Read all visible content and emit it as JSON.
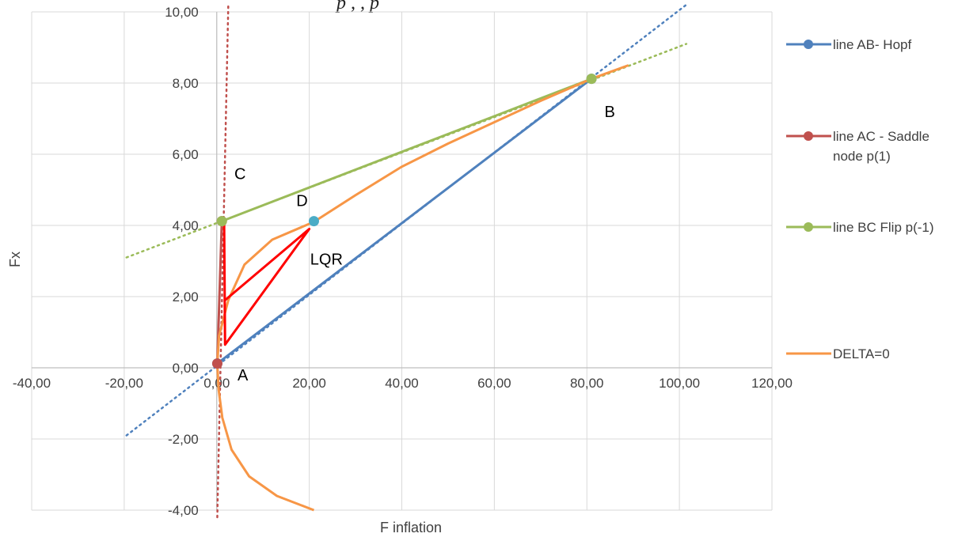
{
  "chart_data": {
    "type": "scatter",
    "title_fragment": "p            ,           , p",
    "xlabel": "F inflation",
    "ylabel": "Fx",
    "xlim": [
      -40,
      120
    ],
    "ylim": [
      -4,
      10
    ],
    "x_ticks": [
      -40,
      -20,
      0,
      20,
      40,
      60,
      80,
      100,
      120
    ],
    "x_tick_labels": [
      "-40,00",
      "-20,00",
      "0,00",
      "20,00",
      "40,00",
      "60,00",
      "80,00",
      "100,00",
      "120,00"
    ],
    "y_ticks": [
      -4,
      -2,
      0,
      2,
      4,
      6,
      8,
      10
    ],
    "y_tick_labels": [
      "-4,00",
      "-2,00",
      "0,00",
      "2,00",
      "4,00",
      "6,00",
      "8,00",
      "10,00"
    ],
    "grid": true,
    "legend_position": "right",
    "series": [
      {
        "name": "line AB- Hopf",
        "legend_lines": [
          "line AB- Hopf"
        ],
        "color": "#4f81bd",
        "marker": true,
        "points": [
          [
            0.12,
            0.12
          ],
          [
            81,
            8.12
          ]
        ],
        "trend": [
          [
            -19.5,
            -1.9
          ],
          [
            101.5,
            10.2
          ]
        ]
      },
      {
        "name": "line AC - Saddle node p(1)",
        "legend_lines": [
          "line AC - Saddle",
          "node p(1)"
        ],
        "color": "#c0504d",
        "marker": true,
        "points": [
          [
            0.12,
            0.12
          ],
          [
            1.1,
            4.12
          ]
        ],
        "trend": [
          [
            0.12,
            -4.2
          ],
          [
            2.5,
            10.2
          ]
        ]
      },
      {
        "name": "line BC Flip p(-1)",
        "legend_lines": [
          "line BC Flip p(-1)"
        ],
        "color": "#9bbb59",
        "marker": true,
        "points": [
          [
            1.1,
            4.12
          ],
          [
            81,
            8.12
          ]
        ],
        "trend": [
          [
            -19.5,
            3.1
          ],
          [
            101.5,
            9.1
          ]
        ]
      },
      {
        "name": "DELTA=0",
        "legend_lines": [
          "DELTA=0"
        ],
        "color": "#f79646",
        "marker": false,
        "points": [
          [
            21,
            -4
          ],
          [
            13,
            -3.6
          ],
          [
            7,
            -3.05
          ],
          [
            3.2,
            -2.3
          ],
          [
            1.2,
            -1.4
          ],
          [
            0.4,
            -0.6
          ],
          [
            0.12,
            0.12
          ],
          [
            0.5,
            0.9
          ],
          [
            2.5,
            1.9
          ],
          [
            6,
            2.9
          ],
          [
            12,
            3.6
          ],
          [
            21,
            4.1
          ],
          [
            30,
            4.85
          ],
          [
            40,
            5.65
          ],
          [
            50,
            6.3
          ],
          [
            60,
            6.9
          ],
          [
            70,
            7.5
          ],
          [
            81,
            8.12
          ],
          [
            89,
            8.5
          ]
        ]
      }
    ],
    "lqr_polygon": {
      "color": "#ff0000",
      "points": [
        [
          1.8,
          1.9
        ],
        [
          20,
          3.9
        ],
        [
          1.8,
          0.65
        ],
        [
          1.6,
          4.1
        ]
      ]
    },
    "extra_points": [
      {
        "x": 21,
        "y": 4.12,
        "color": "#4bacc6"
      }
    ],
    "annotations": [
      {
        "text": "A",
        "x": 4.5,
        "y": -0.35
      },
      {
        "text": "B",
        "x": 83.8,
        "y": 7.05
      },
      {
        "text": "C",
        "x": 3.8,
        "y": 5.3
      },
      {
        "text": "D",
        "x": 17.2,
        "y": 4.55
      },
      {
        "text": "LQR",
        "x": 20.2,
        "y": 2.9
      }
    ]
  }
}
